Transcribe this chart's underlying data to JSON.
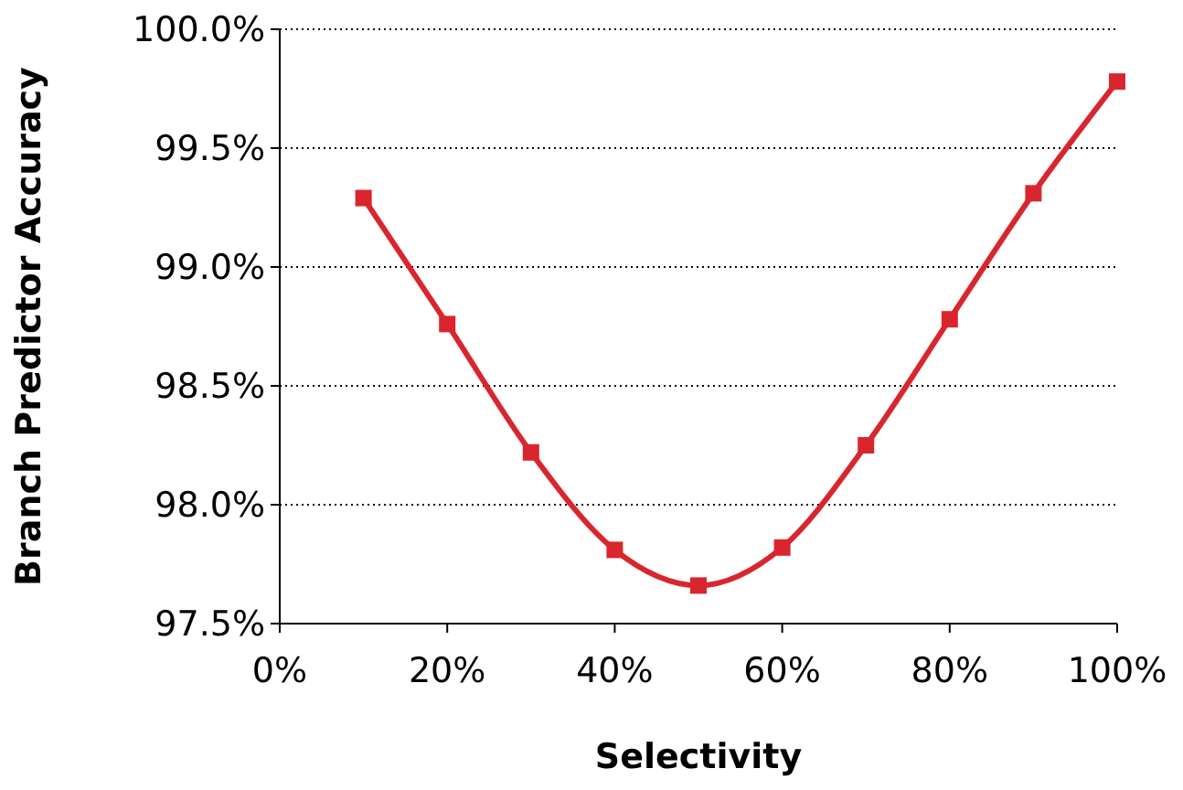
{
  "chart_data": {
    "type": "line",
    "xlabel": "Selectivity",
    "ylabel": "Branch Predictor Accuracy",
    "x": [
      10,
      20,
      30,
      40,
      50,
      60,
      70,
      80,
      90,
      100
    ],
    "series": [
      {
        "color": "#d9262e",
        "values": [
          99.29,
          98.76,
          98.22,
          97.81,
          97.66,
          97.82,
          98.25,
          98.78,
          99.31,
          99.78
        ]
      }
    ],
    "xlim": [
      0,
      100
    ],
    "xticks": [
      {
        "value": 0,
        "label": "0%"
      },
      {
        "value": 20,
        "label": "20%"
      },
      {
        "value": 40,
        "label": "40%"
      },
      {
        "value": 60,
        "label": "60%"
      },
      {
        "value": 80,
        "label": "80%"
      },
      {
        "value": 100,
        "label": "100%"
      }
    ],
    "ylim": [
      97.5,
      100
    ],
    "yticks": [
      {
        "value": 97.5,
        "label": "97.5%"
      },
      {
        "value": 98,
        "label": "98.0%"
      },
      {
        "value": 98.5,
        "label": "98.5%"
      },
      {
        "value": 99,
        "label": "99.0%"
      },
      {
        "value": 99.5,
        "label": "99.5%"
      },
      {
        "value": 100,
        "label": "100.0%"
      }
    ],
    "grid": "y",
    "marker": "square",
    "line_style": "solid"
  }
}
